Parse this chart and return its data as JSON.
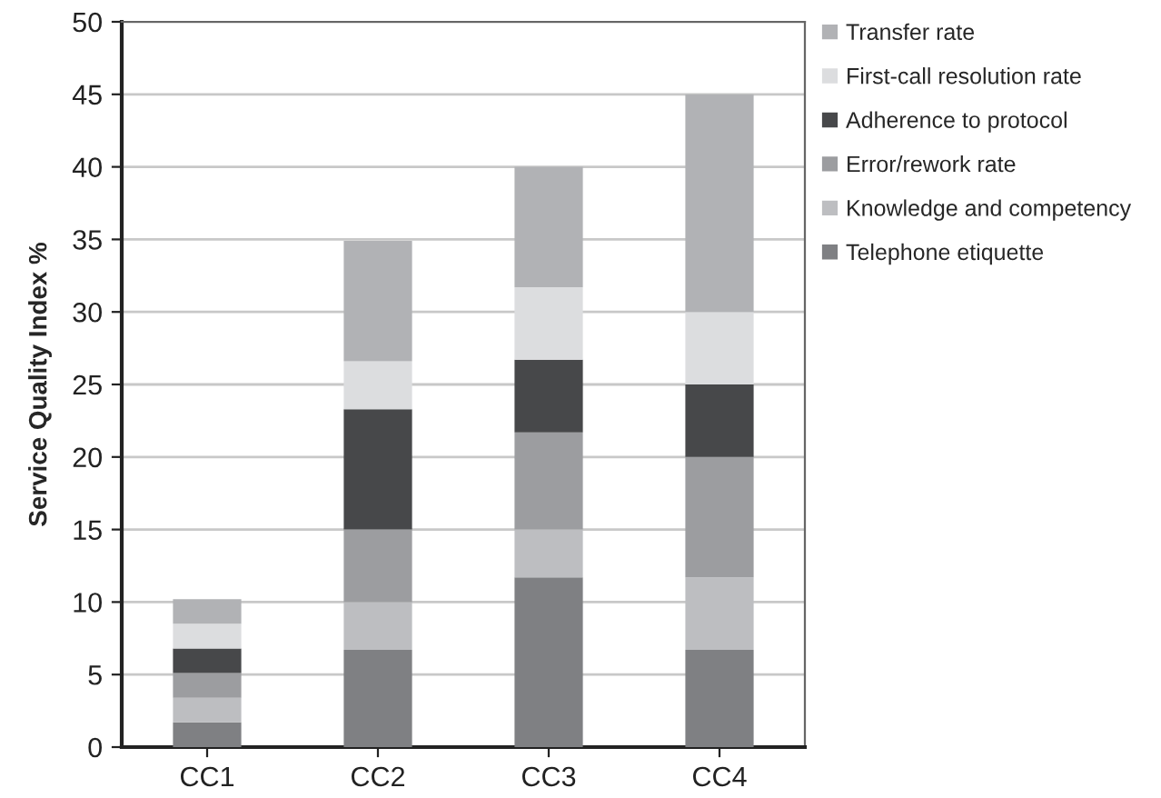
{
  "chart_data": {
    "type": "bar",
    "stacked": true,
    "ylabel": "Service Quality Index %",
    "categories": [
      "CC1",
      "CC2",
      "CC3",
      "CC4"
    ],
    "series": [
      {
        "name": "Telephone etiquette",
        "color": "#7f8083",
        "values": [
          1.7,
          6.7,
          11.7,
          6.7
        ]
      },
      {
        "name": "Knowledge and competency",
        "color": "#bdbec1",
        "values": [
          1.7,
          3.3,
          3.3,
          5
        ]
      },
      {
        "name": "Error/rework rate",
        "color": "#9c9da0",
        "values": [
          1.7,
          5,
          6.7,
          8.3
        ]
      },
      {
        "name": "Adherence to protocol",
        "color": "#47484a",
        "values": [
          1.7,
          8.3,
          5,
          5
        ]
      },
      {
        "name": "First-call resolution rate",
        "color": "#dcdddf",
        "values": [
          1.7,
          3.3,
          5,
          5
        ]
      },
      {
        "name": "Transfer rate",
        "color": "#b1b2b5",
        "values": [
          1.7,
          8.3,
          8.3,
          15
        ]
      }
    ],
    "ylim": [
      0,
      50
    ],
    "yticks": [
      0,
      5,
      10,
      15,
      20,
      25,
      30,
      35,
      40,
      45,
      50
    ],
    "grid": "y",
    "legend": "top right"
  }
}
